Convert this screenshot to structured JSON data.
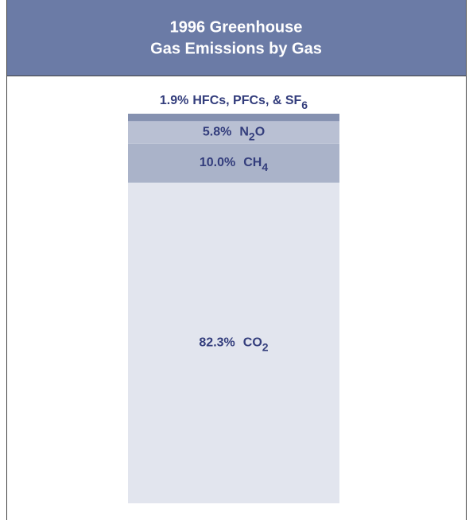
{
  "chart_data": {
    "type": "stacked_bar",
    "title": [
      "1996 Greenhouse",
      "Gas Emissions by Gas"
    ],
    "ylim": [
      0,
      100
    ],
    "series": [
      {
        "name": "CO2",
        "color": "#e2e5ee",
        "values": [
          82.3
        ],
        "value_labels": [
          "82.3%"
        ]
      },
      {
        "name": "CH4",
        "color": "#aab3c9",
        "values": [
          10.0
        ],
        "value_labels": [
          "10.0%"
        ]
      },
      {
        "name": "N2O",
        "color": "#b9c0d3",
        "values": [
          5.8
        ],
        "value_labels": [
          "5.8%"
        ]
      },
      {
        "name": "HFCs, PFCs, & SF6",
        "color": "#8591b0",
        "values": [
          1.9
        ],
        "value_labels": [
          "1.9%"
        ]
      }
    ]
  }
}
